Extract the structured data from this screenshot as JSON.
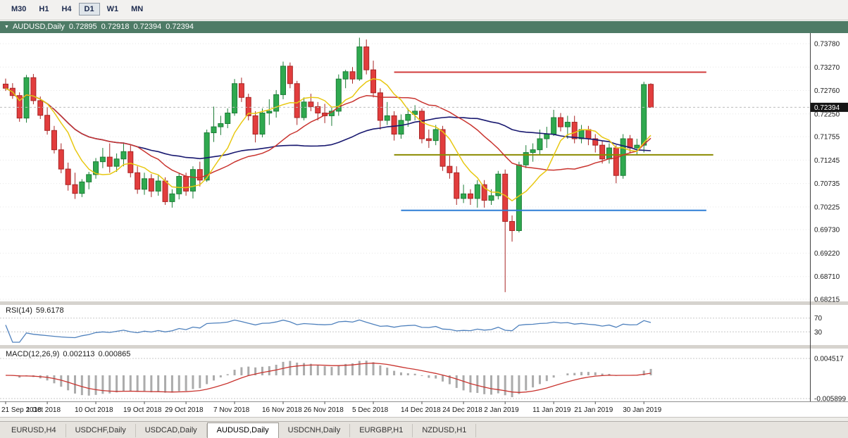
{
  "toolbar": {
    "timeframes": [
      "M30",
      "H1",
      "H4",
      "D1",
      "W1",
      "MN"
    ],
    "active": "D1"
  },
  "chart_header": {
    "symbol": "AUDUSD,Daily",
    "open": "0.72895",
    "high": "0.72918",
    "low": "0.72394",
    "close": "0.72394"
  },
  "price_axis": [
    "0.73780",
    "0.73270",
    "0.72760",
    "0.72250",
    "0.71755",
    "0.71245",
    "0.70735",
    "0.70225",
    "0.69730",
    "0.69220",
    "0.68710",
    "0.68215"
  ],
  "current_price": "0.72394",
  "indicators": {
    "rsi": {
      "name": "RSI(14)",
      "value": "59.6178",
      "levels": [
        "70",
        "30"
      ],
      "line_color": "#4f81bd"
    },
    "macd": {
      "name": "MACD(12,26,9)",
      "value_main": "0.002113",
      "value_signal": "0.000865",
      "axis_top": "0.004517",
      "axis_bottom": "-0.005899",
      "histogram_color": "#ababab",
      "signal_color": "#c9342f"
    }
  },
  "date_axis": [
    "21 Sep 2018",
    "1 Oct 2018",
    "10 Oct 2018",
    "19 Oct 2018",
    "29 Oct 2018",
    "7 Nov 2018",
    "16 Nov 2018",
    "26 Nov 2018",
    "5 Dec 2018",
    "14 Dec 2018",
    "24 Dec 2018",
    "2 Jan 2019",
    "11 Jan 2019",
    "21 Jan 2019",
    "30 Jan 2019"
  ],
  "tabs": {
    "items": [
      "EURUSD,H4",
      "USDCHF,Daily",
      "USDCAD,Daily",
      "AUDUSD,Daily",
      "USDCNH,Daily",
      "EURGBP,H1",
      "NZDUSD,H1"
    ],
    "active_index": 3
  },
  "chart_data": {
    "type": "candlestick",
    "title": "AUDUSD Daily",
    "up_color": "#2fa94f",
    "up_stroke": "#1d7d37",
    "down_color": "#e23d3d",
    "down_stroke": "#a82525",
    "ma_colors": {
      "fast": "#e8c812",
      "mid": "#c9342f",
      "slow": "#191970"
    },
    "tick_indices": [
      0,
      6,
      13,
      20,
      26,
      33,
      40,
      46,
      53,
      60,
      66,
      72,
      79,
      85,
      92
    ],
    "hlines": [
      {
        "name": "resistance-line",
        "price": 0.7316,
        "color": "#d13b3b",
        "from_index": 56,
        "to_index": 101
      },
      {
        "name": "pivot-line",
        "price": 0.7136,
        "color": "#8b8b00",
        "from_index": 56,
        "to_index": 102
      },
      {
        "name": "support-line",
        "price": 0.7015,
        "color": "#2f7fd6",
        "from_index": 57,
        "to_index": 101
      }
    ],
    "ohlc": [
      [
        0.729,
        0.7302,
        0.7275,
        0.7281
      ],
      [
        0.7281,
        0.7292,
        0.7258,
        0.7265
      ],
      [
        0.7265,
        0.7272,
        0.7208,
        0.7216
      ],
      [
        0.7216,
        0.731,
        0.7206,
        0.7304
      ],
      [
        0.7304,
        0.7312,
        0.7246,
        0.7254
      ],
      [
        0.7254,
        0.7263,
        0.7214,
        0.7222
      ],
      [
        0.7222,
        0.7239,
        0.718,
        0.7189
      ],
      [
        0.7189,
        0.7199,
        0.7139,
        0.7147
      ],
      [
        0.7147,
        0.7161,
        0.7096,
        0.7105
      ],
      [
        0.7105,
        0.7119,
        0.7058,
        0.7071
      ],
      [
        0.7071,
        0.7097,
        0.704,
        0.7052
      ],
      [
        0.7052,
        0.7083,
        0.7044,
        0.7077
      ],
      [
        0.7077,
        0.7099,
        0.7061,
        0.7093
      ],
      [
        0.7093,
        0.7129,
        0.7084,
        0.7121
      ],
      [
        0.7121,
        0.7151,
        0.7107,
        0.7131
      ],
      [
        0.7131,
        0.7161,
        0.7097,
        0.7111
      ],
      [
        0.7111,
        0.7139,
        0.7099,
        0.7127
      ],
      [
        0.7127,
        0.7163,
        0.7111,
        0.7143
      ],
      [
        0.7143,
        0.7157,
        0.7087,
        0.7097
      ],
      [
        0.7097,
        0.7111,
        0.7051,
        0.7061
      ],
      [
        0.7061,
        0.7097,
        0.7049,
        0.7084
      ],
      [
        0.7084,
        0.7094,
        0.7044,
        0.7057
      ],
      [
        0.7057,
        0.7091,
        0.7047,
        0.7079
      ],
      [
        0.7079,
        0.7087,
        0.7027,
        0.7034
      ],
      [
        0.7034,
        0.7061,
        0.7021,
        0.7051
      ],
      [
        0.7051,
        0.7097,
        0.7039,
        0.7089
      ],
      [
        0.7089,
        0.7097,
        0.7047,
        0.7057
      ],
      [
        0.7057,
        0.7111,
        0.7041,
        0.7104
      ],
      [
        0.7104,
        0.7121,
        0.7067,
        0.7081
      ],
      [
        0.7081,
        0.7191,
        0.7077,
        0.7184
      ],
      [
        0.7184,
        0.7241,
        0.7164,
        0.7197
      ],
      [
        0.7197,
        0.7221,
        0.7179,
        0.7204
      ],
      [
        0.7204,
        0.7237,
        0.7194,
        0.7227
      ],
      [
        0.7227,
        0.7301,
        0.7221,
        0.7291
      ],
      [
        0.7291,
        0.7304,
        0.7251,
        0.7261
      ],
      [
        0.7261,
        0.7269,
        0.7211,
        0.7221
      ],
      [
        0.7221,
        0.7231,
        0.7163,
        0.7181
      ],
      [
        0.7181,
        0.7237,
        0.7174,
        0.7227
      ],
      [
        0.7227,
        0.7257,
        0.7201,
        0.7231
      ],
      [
        0.7231,
        0.7277,
        0.7217,
        0.7267
      ],
      [
        0.7267,
        0.7339,
        0.7257,
        0.7329
      ],
      [
        0.7329,
        0.7337,
        0.7281,
        0.7291
      ],
      [
        0.7291,
        0.7297,
        0.7201,
        0.7217
      ],
      [
        0.7217,
        0.7261,
        0.7211,
        0.7251
      ],
      [
        0.7251,
        0.7269,
        0.7231,
        0.7241
      ],
      [
        0.7241,
        0.7251,
        0.7211,
        0.7227
      ],
      [
        0.7227,
        0.7247,
        0.7205,
        0.7221
      ],
      [
        0.7221,
        0.7239,
        0.7199,
        0.7231
      ],
      [
        0.7231,
        0.7311,
        0.7221,
        0.7301
      ],
      [
        0.7301,
        0.7321,
        0.7281,
        0.7317
      ],
      [
        0.7317,
        0.7327,
        0.7291,
        0.7301
      ],
      [
        0.7301,
        0.7391,
        0.7297,
        0.7371
      ],
      [
        0.7371,
        0.7387,
        0.7311,
        0.7321
      ],
      [
        0.7321,
        0.7341,
        0.7261,
        0.7271
      ],
      [
        0.7271,
        0.7281,
        0.7191,
        0.7211
      ],
      [
        0.7211,
        0.7251,
        0.7201,
        0.7221
      ],
      [
        0.7221,
        0.7231,
        0.7167,
        0.7181
      ],
      [
        0.7181,
        0.7224,
        0.7171,
        0.7211
      ],
      [
        0.7211,
        0.7237,
        0.7197,
        0.7224
      ],
      [
        0.7224,
        0.7244,
        0.7211,
        0.7231
      ],
      [
        0.7231,
        0.7237,
        0.7161,
        0.7171
      ],
      [
        0.7171,
        0.7191,
        0.7151,
        0.7167
      ],
      [
        0.7167,
        0.7201,
        0.7157,
        0.7191
      ],
      [
        0.7191,
        0.7199,
        0.7101,
        0.7111
      ],
      [
        0.7111,
        0.7134,
        0.7084,
        0.7097
      ],
      [
        0.7097,
        0.7111,
        0.7027,
        0.7041
      ],
      [
        0.7041,
        0.7071,
        0.7031,
        0.7051
      ],
      [
        0.7051,
        0.7061,
        0.7027,
        0.7041
      ],
      [
        0.7041,
        0.7081,
        0.7021,
        0.7071
      ],
      [
        0.7071,
        0.7081,
        0.7021,
        0.7037
      ],
      [
        0.7037,
        0.7061,
        0.7027,
        0.7047
      ],
      [
        0.7047,
        0.7101,
        0.7039,
        0.7094
      ],
      [
        0.7094,
        0.7104,
        0.6837,
        0.6991
      ],
      [
        0.6991,
        0.7004,
        0.6947,
        0.6971
      ],
      [
        0.6971,
        0.7121,
        0.6967,
        0.7114
      ],
      [
        0.7114,
        0.7157,
        0.7107,
        0.7141
      ],
      [
        0.7141,
        0.7161,
        0.7121,
        0.7147
      ],
      [
        0.7147,
        0.7191,
        0.7137,
        0.7171
      ],
      [
        0.7171,
        0.7197,
        0.7151,
        0.7181
      ],
      [
        0.7181,
        0.7234,
        0.7177,
        0.7217
      ],
      [
        0.7217,
        0.7227,
        0.7187,
        0.7197
      ],
      [
        0.7197,
        0.7221,
        0.7171,
        0.7207
      ],
      [
        0.7207,
        0.7221,
        0.7161,
        0.7171
      ],
      [
        0.7171,
        0.7201,
        0.7161,
        0.7191
      ],
      [
        0.7191,
        0.7199,
        0.7157,
        0.7171
      ],
      [
        0.7171,
        0.7181,
        0.7141,
        0.7157
      ],
      [
        0.7157,
        0.7167,
        0.7117,
        0.7127
      ],
      [
        0.7127,
        0.7161,
        0.7117,
        0.7151
      ],
      [
        0.7151,
        0.7157,
        0.7074,
        0.7091
      ],
      [
        0.7091,
        0.7181,
        0.7084,
        0.7171
      ],
      [
        0.7171,
        0.7179,
        0.7139,
        0.7151
      ],
      [
        0.7151,
        0.7171,
        0.7137,
        0.7157
      ],
      [
        0.7157,
        0.7295,
        0.7141,
        0.7289
      ],
      [
        0.72895,
        0.72918,
        0.72394,
        0.72394
      ]
    ]
  }
}
